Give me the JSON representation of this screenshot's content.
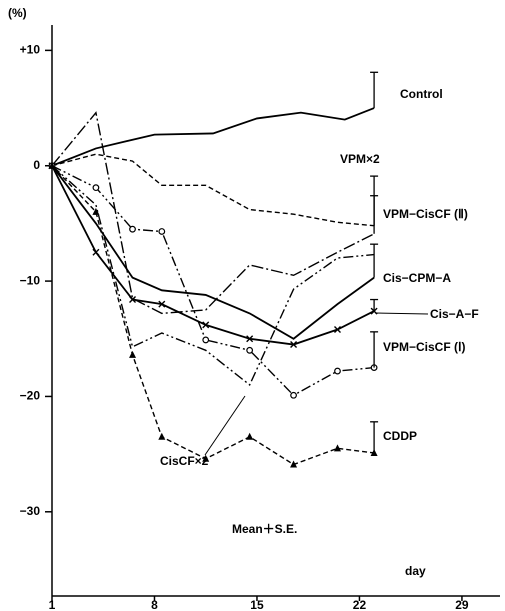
{
  "chart_data": {
    "type": "line",
    "y_unit_label": "(%)",
    "x_label": "day",
    "annotation": "Mean＋S.E.",
    "xlim": [
      1,
      31.6
    ],
    "ylim": [
      -37.3,
      12.2
    ],
    "xticks": [
      1,
      8,
      15,
      22,
      29
    ],
    "yticks": [
      {
        "value": 10,
        "label": "+10"
      },
      0,
      {
        "value": -10,
        "label": "−10"
      },
      {
        "value": -20,
        "label": "−20"
      },
      {
        "value": -30,
        "label": "−30"
      }
    ],
    "series": [
      {
        "name": "Control",
        "color": "#000",
        "dash": "solid",
        "marker": "none",
        "x": [
          1,
          4,
          8,
          12,
          15,
          18,
          21,
          23
        ],
        "values": [
          0,
          1.5,
          2.7,
          2.8,
          4.1,
          4.6,
          4.0,
          5.0
        ],
        "errors": [
          null,
          null,
          null,
          null,
          null,
          null,
          null,
          3.1
        ]
      },
      {
        "name": "VPM×2",
        "color": "#000",
        "dash": "dashed",
        "marker": "none",
        "x": [
          1,
          4,
          6.5,
          8.5,
          11.5,
          14.5,
          17.5,
          20.5,
          23
        ],
        "values": [
          0,
          1.0,
          0.4,
          -1.7,
          -1.7,
          -3.8,
          -4.2,
          -4.9,
          -5.2
        ],
        "errors": [
          null,
          null,
          null,
          null,
          null,
          null,
          null,
          null,
          4.3
        ]
      },
      {
        "name": "VPM−CisCF (Ⅱ)",
        "color": "#000",
        "dash": "dashdot",
        "marker": "none",
        "x": [
          1,
          4,
          6.5,
          8.5,
          11.5,
          14.5,
          17.5,
          20.5,
          23
        ],
        "values": [
          0,
          4.6,
          -11.5,
          -12.8,
          -12.5,
          -8.6,
          -9.5,
          -7.5,
          -5.9
        ],
        "errors": [
          null,
          null,
          null,
          null,
          null,
          null,
          null,
          null,
          3.3
        ]
      },
      {
        "name": "Cis−CPM−A",
        "color": "#000",
        "dash": "solid",
        "marker": "none",
        "x": [
          1,
          4,
          6.5,
          8.5,
          11.5,
          14.5,
          17.5,
          20.5,
          23
        ],
        "values": [
          0,
          -5.0,
          -9.7,
          -10.8,
          -11.2,
          -12.8,
          -15.0,
          -12.0,
          -9.7
        ],
        "errors": [
          null,
          null,
          null,
          null,
          null,
          null,
          null,
          null,
          2.9
        ]
      },
      {
        "name": "Cis−A−F",
        "color": "#000",
        "dash": "solid",
        "marker": "x",
        "x": [
          1,
          4,
          6.5,
          8.5,
          11.5,
          14.5,
          17.5,
          20.5,
          23
        ],
        "values": [
          0,
          -7.5,
          -11.6,
          -12.0,
          -13.8,
          -15.0,
          -15.5,
          -14.2,
          -12.6
        ],
        "errors": [
          null,
          null,
          null,
          null,
          null,
          null,
          null,
          null,
          1.0
        ]
      },
      {
        "name": "VPM−CisCF (Ⅰ)",
        "color": "#000",
        "dash": "dashdotdot",
        "marker": "o",
        "x": [
          1,
          4,
          6.5,
          8.5,
          11.5,
          14.5,
          17.5,
          20.5,
          23
        ],
        "values": [
          0,
          -1.9,
          -5.5,
          -5.7,
          -15.1,
          -16.0,
          -19.9,
          -17.8,
          -17.5
        ],
        "errors": [
          null,
          null,
          null,
          null,
          null,
          null,
          null,
          null,
          3.1
        ]
      },
      {
        "name": "CDDP",
        "color": "#000",
        "dash": "dashed",
        "marker": "triangle",
        "x": [
          1,
          4,
          6.5,
          8.5,
          11.5,
          14.5,
          17.5,
          20.5,
          23
        ],
        "values": [
          0,
          -4.0,
          -16.4,
          -23.5,
          -25.4,
          -23.5,
          -25.9,
          -24.5,
          -24.9
        ],
        "errors": [
          null,
          null,
          null,
          null,
          null,
          null,
          null,
          null,
          2.7
        ]
      },
      {
        "name": "CisCF×2",
        "color": "#000",
        "dash": "dashdotdot",
        "marker": "none",
        "x": [
          1,
          4,
          6.5,
          8.5,
          11.5,
          14.5,
          17.5,
          20.5,
          23
        ],
        "values": [
          0,
          -3.4,
          -15.7,
          -14.5,
          -16.0,
          -19.0,
          -10.7,
          -8.0,
          -7.7
        ],
        "errors": [
          null,
          null,
          null,
          null,
          null,
          null,
          null,
          null,
          null
        ]
      }
    ]
  }
}
